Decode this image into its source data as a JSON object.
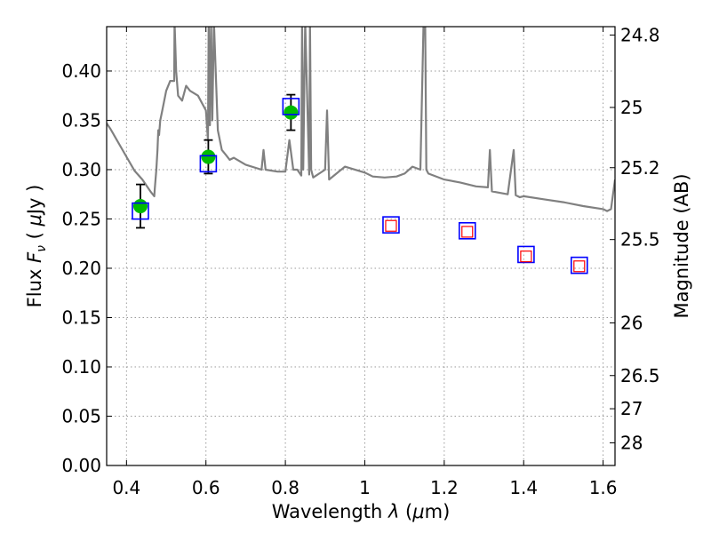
{
  "chart_data": {
    "type": "scatter",
    "xlabel": "Wavelength  λ (μm)",
    "ylabel": "Flux  F_ν  ( μJy )",
    "ylabel_parts": {
      "prefix": "Flux  ",
      "symbol": "F",
      "subscript": "ν",
      "open": "  ( ",
      "unit_mu": "μ",
      "unit": "Jy",
      "close": " )"
    },
    "xlabel_parts": {
      "prefix": "Wavelength  ",
      "symbol": "λ",
      "open": " (",
      "unit_mu": "μ",
      "unit": "m",
      "close": ")"
    },
    "y2label": "Magnitude (AB)",
    "xlim": [
      0.35,
      1.63
    ],
    "ylim": [
      0,
      0.445
    ],
    "grid": true,
    "x_ticks": [
      0.4,
      0.6,
      0.8,
      1.0,
      1.2,
      1.4,
      1.6
    ],
    "x_tick_labels": [
      "0.4",
      "0.6",
      "0.8",
      "1",
      "1.2",
      "1.4",
      "1.6"
    ],
    "y_ticks": [
      0.0,
      0.05,
      0.1,
      0.15,
      0.2,
      0.25,
      0.3,
      0.35,
      0.4
    ],
    "y_tick_labels": [
      "0.00",
      "0.05",
      "0.10",
      "0.15",
      "0.20",
      "0.25",
      "0.30",
      "0.35",
      "0.40"
    ],
    "mag_ticks": [
      24.8,
      25,
      25.2,
      25.5,
      26,
      26.5,
      27,
      28
    ],
    "mag_tick_labels": [
      "24.8",
      "25",
      "25.2",
      "25.5",
      "26",
      "26.5",
      "27",
      "28"
    ],
    "colors": {
      "model": "#808080",
      "observed": "#00bb00",
      "model_photometry": "#0000ff",
      "predicted": "#ff0000",
      "errorbar": "#000000",
      "grid": "#9a9a9a"
    },
    "series": [
      {
        "kind": "model_spectrum",
        "x": [
          0.35,
          0.36,
          0.38,
          0.4,
          0.42,
          0.44,
          0.46,
          0.47,
          0.471,
          0.475,
          0.478,
          0.48,
          0.482,
          0.485,
          0.49,
          0.5,
          0.51,
          0.52,
          0.521,
          0.525,
          0.53,
          0.54,
          0.55,
          0.56,
          0.58,
          0.6,
          0.605,
          0.607,
          0.61,
          0.613,
          0.616,
          0.62,
          0.63,
          0.64,
          0.65,
          0.66,
          0.67,
          0.7,
          0.74,
          0.745,
          0.75,
          0.78,
          0.8,
          0.81,
          0.82,
          0.83,
          0.84,
          0.842,
          0.845,
          0.85,
          0.86,
          0.862,
          0.865,
          0.87,
          0.9,
          0.905,
          0.91,
          0.95,
          1.0,
          1.02,
          1.05,
          1.08,
          1.1,
          1.12,
          1.14,
          1.148,
          1.15,
          1.152,
          1.155,
          1.16,
          1.2,
          1.24,
          1.28,
          1.31,
          1.315,
          1.32,
          1.36,
          1.375,
          1.38,
          1.39,
          1.4,
          1.45,
          1.5,
          1.55,
          1.6,
          1.61,
          1.62,
          1.63
        ],
        "y": [
          0.347,
          0.341,
          0.327,
          0.313,
          0.299,
          0.29,
          0.278,
          0.273,
          0.28,
          0.3,
          0.32,
          0.34,
          0.335,
          0.35,
          0.36,
          0.38,
          0.39,
          0.39,
          0.45,
          0.4,
          0.375,
          0.37,
          0.385,
          0.38,
          0.375,
          0.36,
          0.33,
          0.45,
          0.345,
          0.45,
          0.35,
          0.45,
          0.34,
          0.32,
          0.315,
          0.31,
          0.312,
          0.305,
          0.3,
          0.32,
          0.3,
          0.298,
          0.298,
          0.33,
          0.3,
          0.3,
          0.294,
          0.45,
          0.3,
          0.45,
          0.295,
          0.45,
          0.3,
          0.292,
          0.3,
          0.36,
          0.29,
          0.303,
          0.297,
          0.293,
          0.292,
          0.293,
          0.296,
          0.303,
          0.3,
          0.45,
          0.45,
          0.45,
          0.3,
          0.296,
          0.29,
          0.287,
          0.283,
          0.282,
          0.32,
          0.278,
          0.275,
          0.32,
          0.274,
          0.272,
          0.273,
          0.27,
          0.267,
          0.263,
          0.26,
          0.258,
          0.26,
          0.29
        ]
      },
      {
        "kind": "observed_flux",
        "x": [
          0.435,
          0.606,
          0.814
        ],
        "y": [
          0.263,
          0.313,
          0.358
        ],
        "yerr": [
          0.022,
          0.017,
          0.018
        ]
      },
      {
        "kind": "model_photometry",
        "x": [
          0.435,
          0.606,
          0.814,
          1.066,
          1.258,
          1.406,
          1.54
        ],
        "y": [
          0.258,
          0.306,
          0.364,
          0.244,
          0.238,
          0.214,
          0.203
        ]
      },
      {
        "kind": "predicted_flux",
        "x": [
          1.066,
          1.258,
          1.406,
          1.54
        ],
        "y": [
          0.243,
          0.237,
          0.212,
          0.202
        ]
      }
    ]
  }
}
